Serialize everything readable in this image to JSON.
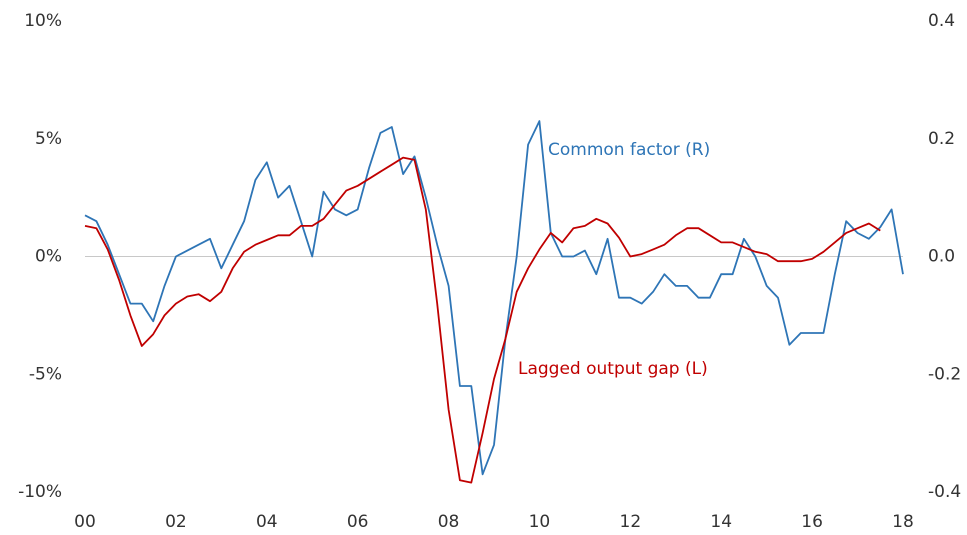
{
  "chart_data": {
    "type": "line",
    "x": [
      2000,
      2000.25,
      2000.5,
      2000.75,
      2001,
      2001.25,
      2001.5,
      2001.75,
      2002,
      2002.25,
      2002.5,
      2002.75,
      2003,
      2003.25,
      2003.5,
      2003.75,
      2004,
      2004.25,
      2004.5,
      2004.75,
      2005,
      2005.25,
      2005.5,
      2005.75,
      2006,
      2006.25,
      2006.5,
      2006.75,
      2007,
      2007.25,
      2007.5,
      2007.75,
      2008,
      2008.25,
      2008.5,
      2008.75,
      2009,
      2009.25,
      2009.5,
      2009.75,
      2010,
      2010.25,
      2010.5,
      2010.75,
      2011,
      2011.25,
      2011.5,
      2011.75,
      2012,
      2012.25,
      2012.5,
      2012.75,
      2013,
      2013.25,
      2013.5,
      2013.75,
      2014,
      2014.25,
      2014.5,
      2014.75,
      2015,
      2015.25,
      2015.5,
      2015.75,
      2016,
      2016.25,
      2016.5,
      2016.75,
      2017,
      2017.25,
      2017.5,
      2017.75,
      2018
    ],
    "series": [
      {
        "name": "Common factor (R)",
        "color": "#2e75b6",
        "axis": "y2",
        "values": [
          0.07,
          0.06,
          0.02,
          -0.03,
          -0.08,
          -0.08,
          -0.11,
          -0.05,
          0.0,
          0.01,
          0.02,
          0.03,
          -0.02,
          0.02,
          0.06,
          0.13,
          0.16,
          0.1,
          0.12,
          0.06,
          0.0,
          0.11,
          0.08,
          0.07,
          0.08,
          0.15,
          0.21,
          0.22,
          0.14,
          0.17,
          0.1,
          0.02,
          -0.05,
          -0.22,
          -0.22,
          -0.37,
          -0.32,
          -0.14,
          0.0,
          0.19,
          0.23,
          0.04,
          0.0,
          0.0,
          0.01,
          -0.03,
          0.03,
          -0.07,
          -0.07,
          -0.08,
          -0.06,
          -0.03,
          -0.05,
          -0.05,
          -0.07,
          -0.07,
          -0.03,
          -0.03,
          0.03,
          0.0,
          -0.05,
          -0.07,
          -0.15,
          -0.13,
          -0.13,
          -0.13,
          -0.03,
          0.06,
          0.04,
          0.03,
          0.05,
          0.08,
          -0.03
        ]
      },
      {
        "name": "Lagged output gap (L)",
        "color": "#c00000",
        "values": [
          1.3,
          1.2,
          0.3,
          -1.0,
          -2.5,
          -3.8,
          -3.3,
          -2.5,
          -2.0,
          -1.7,
          -1.6,
          -1.9,
          -1.5,
          -0.5,
          0.2,
          0.5,
          0.7,
          0.9,
          0.9,
          1.3,
          1.3,
          1.6,
          2.2,
          2.8,
          3.0,
          3.3,
          3.6,
          3.9,
          4.2,
          4.1,
          2.0,
          -2.0,
          -6.5,
          -9.5,
          -9.6,
          -7.5,
          -5.2,
          -3.5,
          -1.5,
          -0.5,
          0.3,
          1.0,
          0.6,
          1.2,
          1.3,
          1.6,
          1.4,
          0.8,
          0.0,
          0.1,
          0.3,
          0.5,
          0.9,
          1.2,
          1.2,
          0.9,
          0.6,
          0.6,
          0.4,
          0.2,
          0.1,
          -0.2,
          -0.2,
          -0.2,
          -0.1,
          0.2,
          0.6,
          1.0,
          1.2,
          1.4,
          1.1,
          null,
          null
        ]
      }
    ],
    "xlim": [
      2000,
      2018
    ],
    "xticks": [
      {
        "value": 2000,
        "label": "00"
      },
      {
        "value": 2002,
        "label": "02"
      },
      {
        "value": 2004,
        "label": "04"
      },
      {
        "value": 2006,
        "label": "06"
      },
      {
        "value": 2008,
        "label": "08"
      },
      {
        "value": 2010,
        "label": "10"
      },
      {
        "value": 2012,
        "label": "12"
      },
      {
        "value": 2014,
        "label": "14"
      },
      {
        "value": 2016,
        "label": "16"
      },
      {
        "value": 2018,
        "label": "18"
      }
    ],
    "ylim": [
      -10,
      10
    ],
    "yticks": [
      {
        "value": -10,
        "label": "-10%"
      },
      {
        "value": -5,
        "label": "-5%"
      },
      {
        "value": 0,
        "label": "0%"
      },
      {
        "value": 5,
        "label": "5%"
      },
      {
        "value": 10,
        "label": "10%"
      }
    ],
    "y2lim": [
      -0.4,
      0.4
    ],
    "y2ticks": [
      -0.4,
      -0.2,
      {
        "value": 0,
        "label": "0.0"
      },
      0.2,
      0.4
    ],
    "zero_line": true
  }
}
